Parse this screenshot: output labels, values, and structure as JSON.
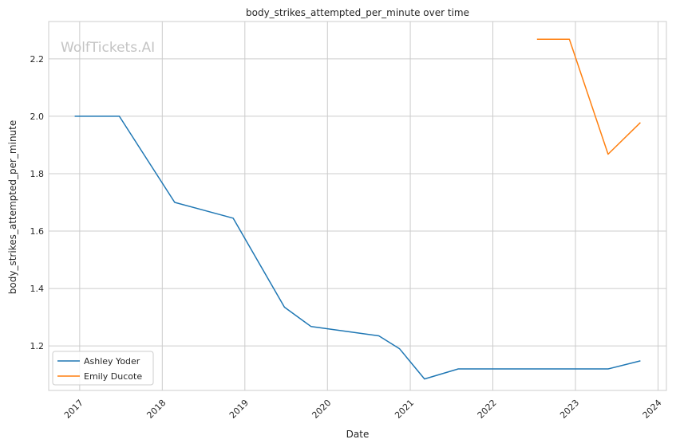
{
  "chart_data": {
    "type": "line",
    "title": "body_strikes_attempted_per_minute over time",
    "xlabel": "Date",
    "ylabel": "body_strikes_attempted_per_minute",
    "watermark": "WolfTickets.AI",
    "x_ticks": [
      "2017",
      "2018",
      "2019",
      "2020",
      "2021",
      "2022",
      "2023",
      "2024"
    ],
    "y_ticks": [
      "1.2",
      "1.4",
      "1.6",
      "1.8",
      "2.0",
      "2.2"
    ],
    "xlim": [
      "2016-08-17",
      "2024-02-07"
    ],
    "ylim": [
      1.045,
      2.33
    ],
    "grid": true,
    "legend_position": "lower-left",
    "series": [
      {
        "name": "Ashley Yoder",
        "color": "#1f77b4",
        "points": [
          {
            "x": "2016-12-10",
            "y": 2.0
          },
          {
            "x": "2017-06-25",
            "y": 2.0
          },
          {
            "x": "2018-02-25",
            "y": 1.7
          },
          {
            "x": "2018-11-10",
            "y": 1.645
          },
          {
            "x": "2019-06-25",
            "y": 1.335
          },
          {
            "x": "2019-10-20",
            "y": 1.268
          },
          {
            "x": "2020-08-15",
            "y": 1.235
          },
          {
            "x": "2020-11-15",
            "y": 1.19
          },
          {
            "x": "2021-03-05",
            "y": 1.085
          },
          {
            "x": "2021-08-01",
            "y": 1.12
          },
          {
            "x": "2023-05-25",
            "y": 1.12
          },
          {
            "x": "2023-10-15",
            "y": 1.148
          }
        ]
      },
      {
        "name": "Emily Ducote",
        "color": "#ff7f0e",
        "points": [
          {
            "x": "2022-07-15",
            "y": 2.268
          },
          {
            "x": "2022-12-05",
            "y": 2.268
          },
          {
            "x": "2023-05-25",
            "y": 1.868
          },
          {
            "x": "2023-10-15",
            "y": 1.978
          }
        ]
      }
    ]
  }
}
